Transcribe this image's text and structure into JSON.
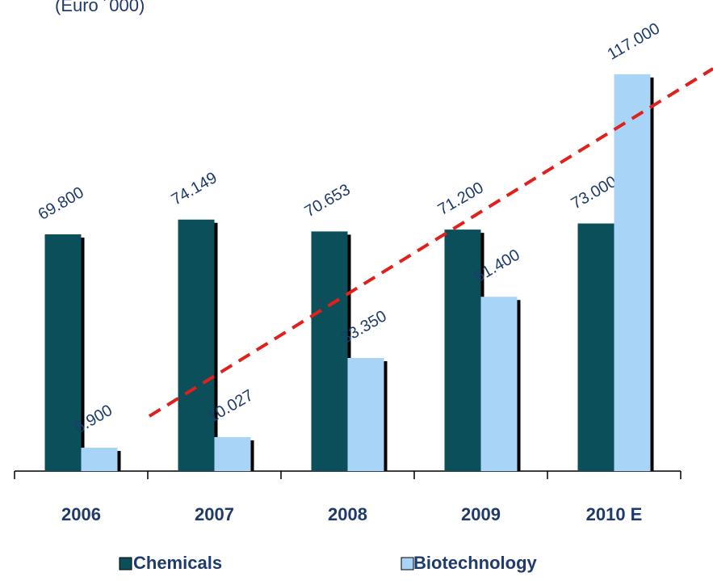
{
  "chart_data": {
    "type": "bar",
    "subtitle": "(Euro ´000)",
    "categories": [
      "2006",
      "2007",
      "2008",
      "2009",
      "2010 E"
    ],
    "series": [
      {
        "name": "Chemicals",
        "color": "#0b4f5b",
        "values": [
          69800,
          74149,
          70653,
          71200,
          73000
        ],
        "value_labels": [
          "69.800",
          "74.149",
          "70.653",
          "71.200",
          "73.000"
        ]
      },
      {
        "name": "Biotechnology",
        "color": "#a8d5f7",
        "values": [
          6900,
          10027,
          33350,
          51400,
          117000
        ],
        "value_labels": [
          "6.900",
          "10.027",
          "33.350",
          "51.400",
          "117.000"
        ]
      }
    ]
  }
}
